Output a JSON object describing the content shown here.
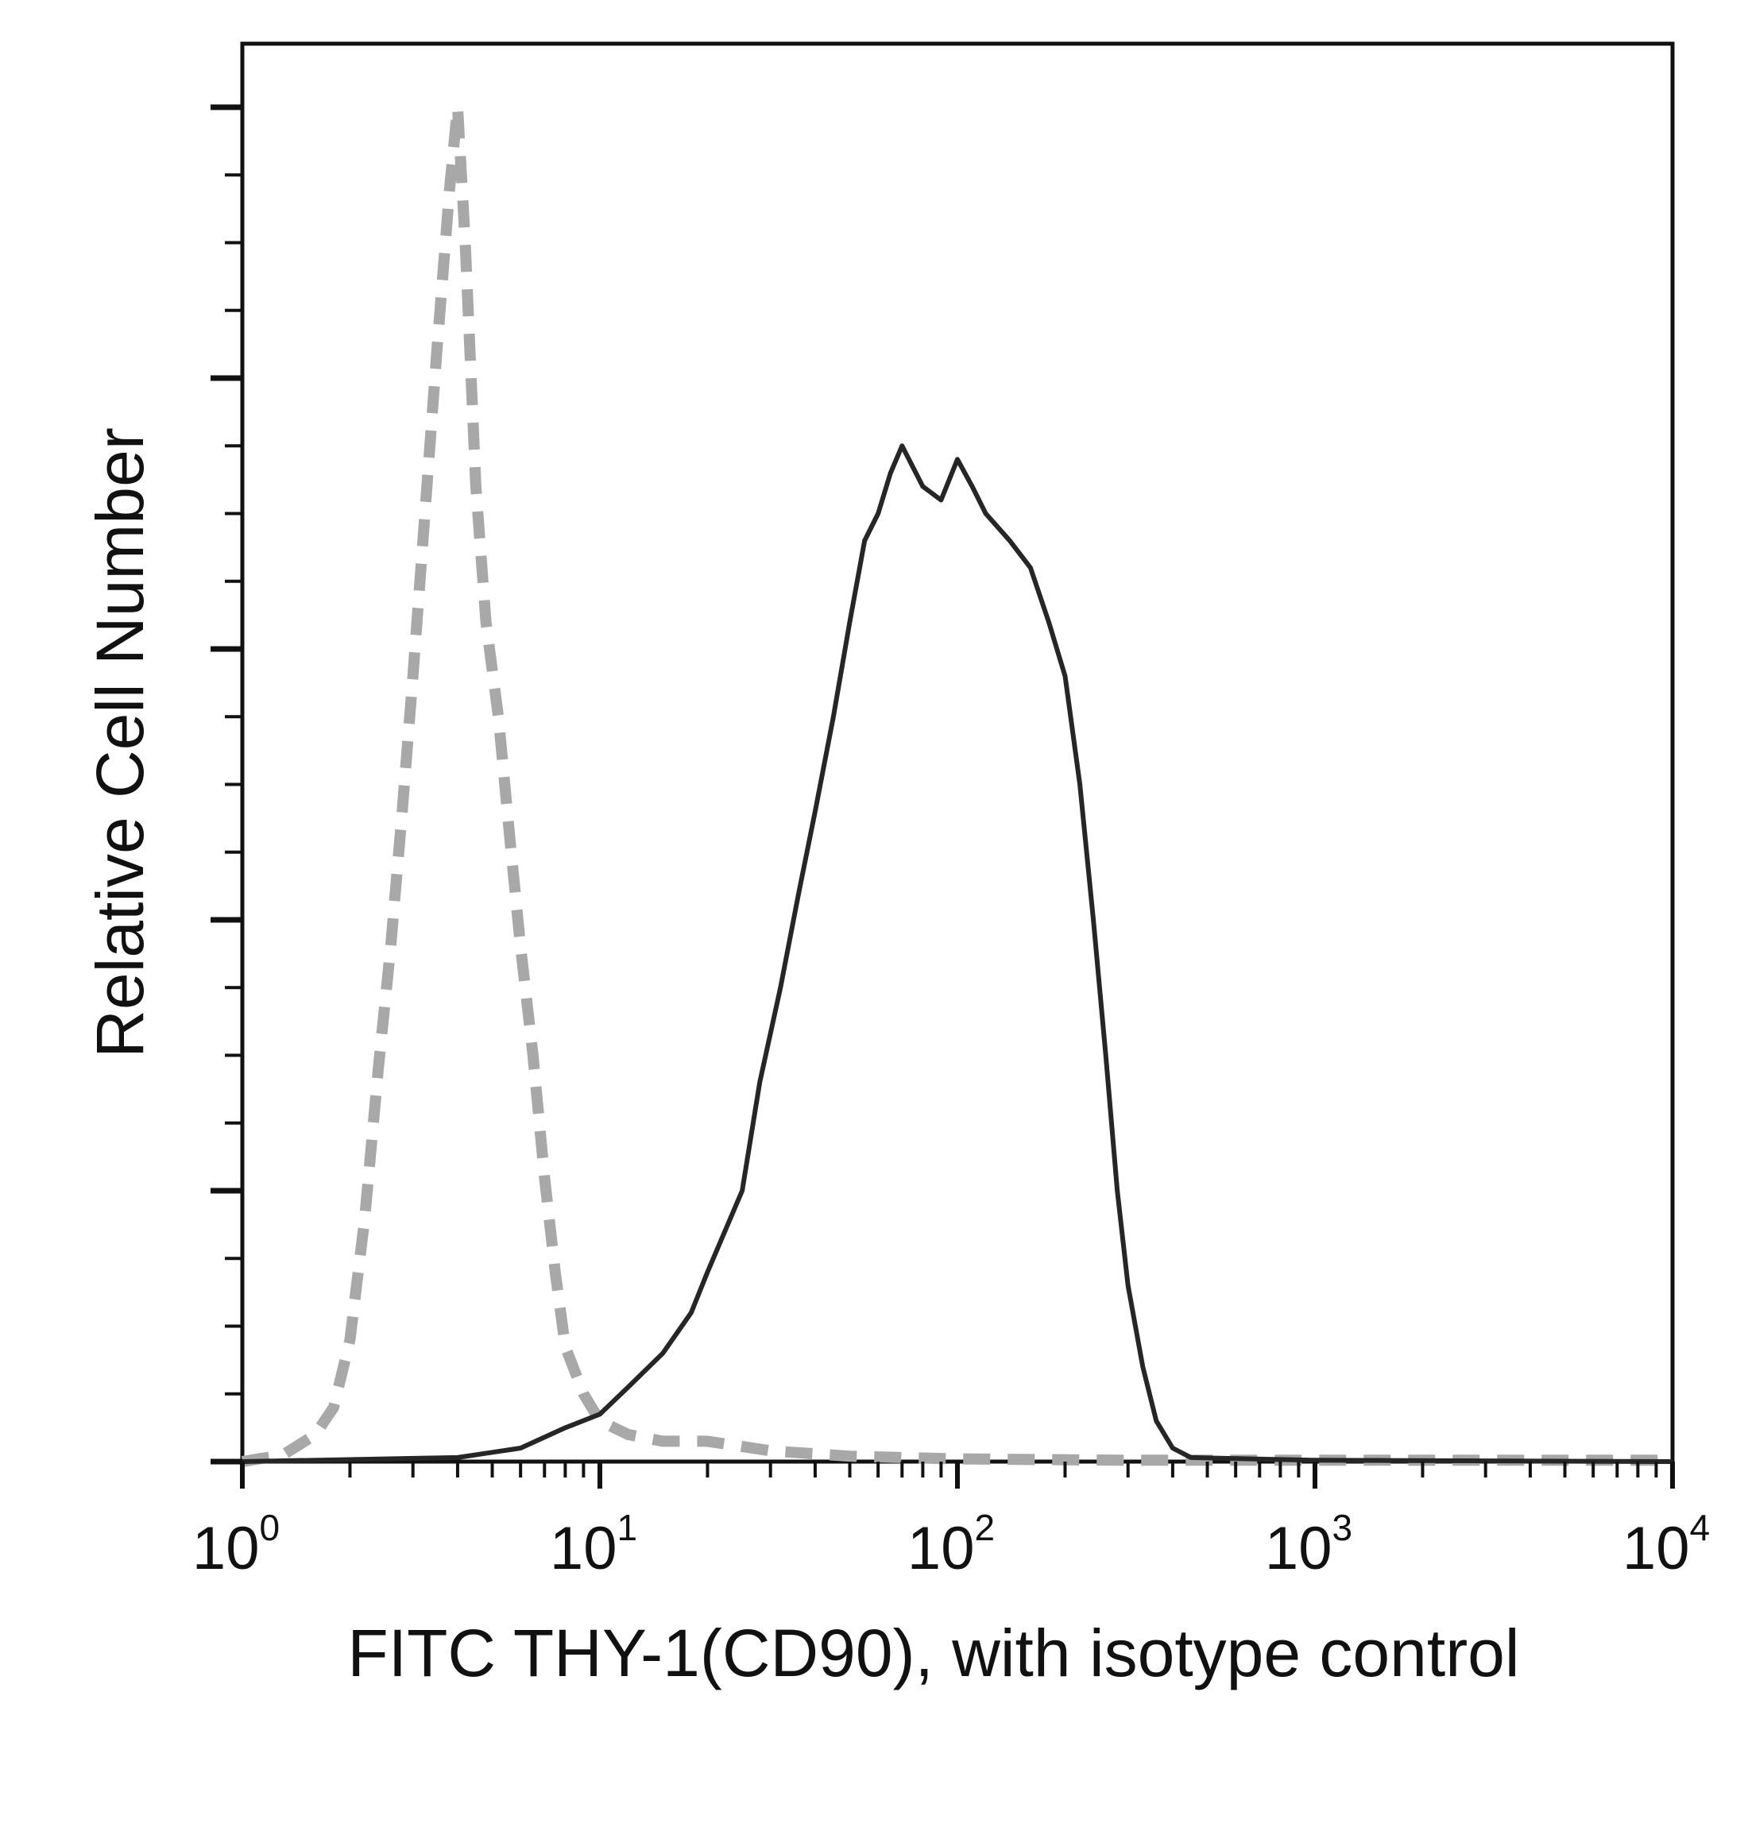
{
  "chart_data": {
    "type": "histogram",
    "xlabel": "FITC THY-1(CD90), with isotype control",
    "ylabel": "Relative Cell Number",
    "x_scale": "log",
    "xlim": [
      1,
      10000
    ],
    "ylim": [
      0,
      1
    ],
    "x_tick_labels": [
      {
        "value": 1,
        "base": "10",
        "exp": "0"
      },
      {
        "value": 10,
        "base": "10",
        "exp": "1"
      },
      {
        "value": 100,
        "base": "10",
        "exp": "2"
      },
      {
        "value": 1000,
        "base": "10",
        "exp": "3"
      },
      {
        "value": 10000,
        "base": "10",
        "exp": "4"
      }
    ],
    "y_tick_labels": [],
    "grid": false,
    "legend": "none",
    "series": [
      {
        "style": "dashed",
        "color": "#a8a8a8",
        "points": [
          [
            1.0,
            0.0
          ],
          [
            1.3,
            0.005
          ],
          [
            1.6,
            0.02
          ],
          [
            1.8,
            0.04
          ],
          [
            2.0,
            0.09
          ],
          [
            2.2,
            0.18
          ],
          [
            2.4,
            0.29
          ],
          [
            2.6,
            0.38
          ],
          [
            2.8,
            0.48
          ],
          [
            3.0,
            0.58
          ],
          [
            3.2,
            0.68
          ],
          [
            3.5,
            0.82
          ],
          [
            3.8,
            0.94
          ],
          [
            4.0,
            1.0
          ],
          [
            4.2,
            0.9
          ],
          [
            4.5,
            0.72
          ],
          [
            4.8,
            0.62
          ],
          [
            5.2,
            0.55
          ],
          [
            5.6,
            0.46
          ],
          [
            6.0,
            0.38
          ],
          [
            6.5,
            0.3
          ],
          [
            7.0,
            0.21
          ],
          [
            7.5,
            0.14
          ],
          [
            8.0,
            0.085
          ],
          [
            9.0,
            0.05
          ],
          [
            10.0,
            0.03
          ],
          [
            12.0,
            0.02
          ],
          [
            15.0,
            0.015
          ],
          [
            20.0,
            0.015
          ],
          [
            30.0,
            0.008
          ],
          [
            50.0,
            0.004
          ],
          [
            100.0,
            0.002
          ],
          [
            300.0,
            0.001
          ],
          [
            10000.0,
            0.001
          ]
        ]
      },
      {
        "style": "solid",
        "color": "#262626",
        "points": [
          [
            1.0,
            0.0
          ],
          [
            4.0,
            0.003
          ],
          [
            6.0,
            0.01
          ],
          [
            8.0,
            0.025
          ],
          [
            10.0,
            0.035
          ],
          [
            12.0,
            0.055
          ],
          [
            15.0,
            0.08
          ],
          [
            18.0,
            0.11
          ],
          [
            20.0,
            0.14
          ],
          [
            25.0,
            0.2
          ],
          [
            28.0,
            0.28
          ],
          [
            32.0,
            0.35
          ],
          [
            36.0,
            0.42
          ],
          [
            40.0,
            0.48
          ],
          [
            45.0,
            0.55
          ],
          [
            50.0,
            0.62
          ],
          [
            55.0,
            0.68
          ],
          [
            60.0,
            0.7
          ],
          [
            65.0,
            0.73
          ],
          [
            70.0,
            0.75
          ],
          [
            80.0,
            0.72
          ],
          [
            90.0,
            0.71
          ],
          [
            100.0,
            0.74
          ],
          [
            110.0,
            0.72
          ],
          [
            120.0,
            0.7
          ],
          [
            140.0,
            0.68
          ],
          [
            160.0,
            0.66
          ],
          [
            180.0,
            0.62
          ],
          [
            200.0,
            0.58
          ],
          [
            220.0,
            0.5
          ],
          [
            240.0,
            0.4
          ],
          [
            260.0,
            0.3
          ],
          [
            280.0,
            0.2
          ],
          [
            300.0,
            0.13
          ],
          [
            330.0,
            0.07
          ],
          [
            360.0,
            0.03
          ],
          [
            400.0,
            0.01
          ],
          [
            450.0,
            0.003
          ],
          [
            1000.0,
            0.001
          ],
          [
            10000.0,
            0.0
          ]
        ]
      }
    ]
  }
}
